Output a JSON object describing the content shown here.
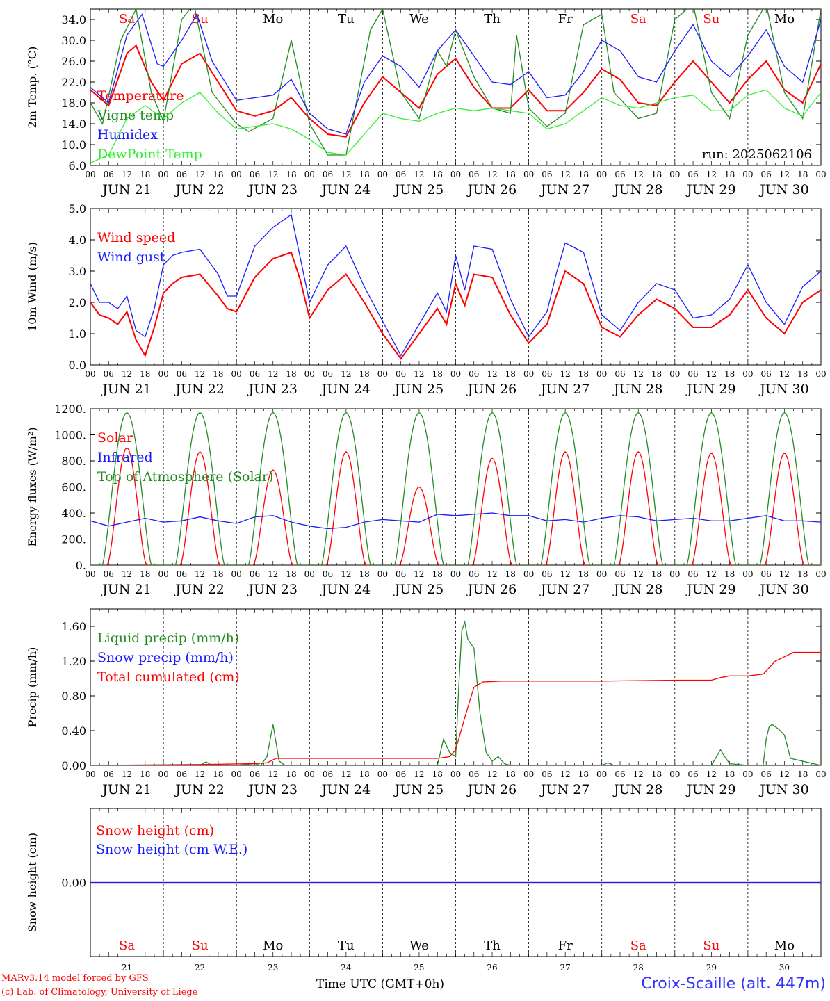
{
  "run_label": "run: 2025062106",
  "footer": {
    "model": "MARv3.14 model forced by GFS",
    "copyright": "(c) Lab. of Climatology, University of Liege",
    "xlabel": "Time UTC (GMT+0h)",
    "station": "Croix-Scaille (alt. 447m)"
  },
  "colors": {
    "red": "#ff0000",
    "green": "#228b22",
    "blue": "#1a1aff",
    "lightgreen": "#33ee33"
  },
  "days": [
    {
      "date": "JUN 21",
      "dow": "Sa",
      "num": "21",
      "weekend": true
    },
    {
      "date": "JUN 22",
      "dow": "Su",
      "num": "22",
      "weekend": true
    },
    {
      "date": "JUN 23",
      "dow": "Mo",
      "num": "23",
      "weekend": false
    },
    {
      "date": "JUN 24",
      "dow": "Tu",
      "num": "24",
      "weekend": false
    },
    {
      "date": "JUN 25",
      "dow": "We",
      "num": "25",
      "weekend": false
    },
    {
      "date": "JUN 26",
      "dow": "Th",
      "num": "26",
      "weekend": false
    },
    {
      "date": "JUN 27",
      "dow": "Fr",
      "num": "27",
      "weekend": false
    },
    {
      "date": "JUN 28",
      "dow": "Sa",
      "num": "28",
      "weekend": true
    },
    {
      "date": "JUN 29",
      "dow": "Su",
      "num": "29",
      "weekend": true
    },
    {
      "date": "JUN 30",
      "dow": "Mo",
      "num": "30",
      "weekend": false
    }
  ],
  "hour_ticks": [
    "00",
    "06",
    "12",
    "18"
  ],
  "chart_data": [
    {
      "type": "line",
      "ylabel": "2m Temp. (°C)",
      "ylim": [
        6,
        36
      ],
      "yticks": [
        6,
        10,
        14,
        18,
        22,
        26,
        30,
        34
      ],
      "ytick_labels": [
        "6.0",
        "10.0",
        "14.0",
        "18.0",
        "22.0",
        "26.0",
        "30.0",
        "34.0"
      ],
      "x_unit": "hours since JUN 21 00 UTC",
      "series": [
        {
          "name": "Temperature",
          "color": "#ff0000",
          "x": [
            0,
            6,
            12,
            15,
            20,
            24,
            30,
            36,
            42,
            48,
            54,
            60,
            66,
            72,
            78,
            84,
            90,
            96,
            102,
            108,
            114,
            120,
            126,
            132,
            138,
            144,
            150,
            156,
            162,
            168,
            174,
            180,
            186,
            192,
            198,
            204,
            210,
            216,
            222,
            228,
            234,
            240
          ],
          "values": [
            20.5,
            17.5,
            27.5,
            29.0,
            22.0,
            18.5,
            25.5,
            27.5,
            22.0,
            16.5,
            15.5,
            16.5,
            19.0,
            15.0,
            12.0,
            11.5,
            18.0,
            23.0,
            20.0,
            17.0,
            23.5,
            26.5,
            21.0,
            17.0,
            17.0,
            20.5,
            16.5,
            16.5,
            20.0,
            24.5,
            22.5,
            18.0,
            17.5,
            22.0,
            26.0,
            22.0,
            18.0,
            22.5,
            26.0,
            20.5,
            18.0,
            25.5
          ]
        },
        {
          "name": "Vigne temp",
          "color": "#228b22",
          "x": [
            0,
            4,
            10,
            15,
            20,
            24,
            30,
            34,
            40,
            48,
            52,
            60,
            66,
            72,
            78,
            84,
            92,
            96,
            102,
            108,
            114,
            117,
            120,
            126,
            132,
            138,
            140,
            144,
            150,
            156,
            162,
            168,
            172,
            180,
            186,
            192,
            198,
            204,
            210,
            216,
            222,
            228,
            234,
            240
          ],
          "values": [
            18.0,
            14.0,
            30.0,
            36.0,
            20.0,
            14.5,
            34.0,
            37.0,
            20.0,
            14.0,
            12.5,
            15.0,
            30.0,
            14.0,
            8.0,
            8.0,
            32.0,
            36.0,
            20.0,
            15.0,
            28.0,
            25.0,
            32.0,
            23.0,
            17.0,
            16.0,
            31.0,
            17.0,
            13.5,
            16.0,
            33.0,
            35.0,
            20.0,
            15.0,
            16.0,
            34.0,
            37.0,
            20.0,
            15.0,
            31.0,
            37.0,
            20.0,
            15.0,
            36.0
          ]
        },
        {
          "name": "Humidex",
          "color": "#1a1aff",
          "x": [
            0,
            6,
            12,
            17,
            22,
            24,
            30,
            35,
            40,
            48,
            54,
            60,
            66,
            72,
            78,
            84,
            90,
            96,
            102,
            108,
            114,
            120,
            126,
            132,
            138,
            144,
            150,
            156,
            162,
            168,
            174,
            180,
            186,
            192,
            198,
            204,
            210,
            216,
            222,
            228,
            234,
            240
          ],
          "values": [
            21.0,
            18.0,
            31.0,
            35.0,
            25.5,
            25.0,
            30.0,
            35.0,
            26.0,
            18.5,
            19.0,
            19.5,
            22.5,
            16.0,
            13.0,
            12.0,
            22.0,
            27.0,
            25.0,
            21.0,
            28.0,
            32.0,
            27.0,
            22.0,
            21.5,
            24.0,
            19.0,
            19.5,
            24.0,
            30.0,
            28.0,
            23.0,
            22.0,
            28.0,
            33.0,
            26.0,
            23.0,
            27.0,
            32.0,
            25.0,
            22.0,
            34.0
          ]
        },
        {
          "name": "DewPoint Temp",
          "color": "#33ee33",
          "x": [
            0,
            6,
            12,
            18,
            24,
            30,
            36,
            42,
            48,
            54,
            60,
            66,
            72,
            78,
            84,
            90,
            96,
            102,
            108,
            114,
            120,
            126,
            132,
            138,
            144,
            150,
            156,
            162,
            168,
            174,
            180,
            186,
            192,
            198,
            204,
            210,
            216,
            222,
            228,
            234,
            240
          ],
          "values": [
            6.5,
            8.0,
            15.0,
            17.5,
            15.0,
            18.0,
            20.0,
            16.0,
            13.0,
            13.5,
            14.0,
            13.0,
            11.0,
            8.5,
            8.0,
            12.0,
            16.0,
            15.0,
            14.5,
            16.0,
            17.0,
            16.5,
            17.0,
            16.5,
            16.0,
            13.0,
            14.0,
            16.5,
            19.0,
            17.5,
            17.0,
            18.0,
            19.0,
            19.5,
            16.5,
            16.5,
            19.5,
            20.5,
            17.0,
            15.5,
            20.0
          ]
        }
      ]
    },
    {
      "type": "line",
      "ylabel": "10m Wind (m/s)",
      "ylim": [
        0,
        5
      ],
      "yticks": [
        0,
        1,
        2,
        3,
        4,
        5
      ],
      "ytick_labels": [
        "0.0",
        "1.0",
        "2.0",
        "3.0",
        "4.0",
        "5.0"
      ],
      "x_unit": "hours since JUN 21 00 UTC",
      "series": [
        {
          "name": "Wind speed",
          "color": "#ff0000",
          "x": [
            0,
            3,
            6,
            9,
            12,
            15,
            18,
            21,
            24,
            27,
            30,
            36,
            42,
            45,
            48,
            54,
            60,
            66,
            69,
            72,
            78,
            84,
            90,
            96,
            102,
            108,
            114,
            117,
            120,
            123,
            126,
            132,
            138,
            144,
            150,
            153,
            156,
            162,
            168,
            174,
            180,
            186,
            192,
            198,
            204,
            210,
            216,
            222,
            228,
            234,
            240
          ],
          "values": [
            2.0,
            1.6,
            1.5,
            1.3,
            1.7,
            0.8,
            0.3,
            1.2,
            2.3,
            2.6,
            2.8,
            2.9,
            2.2,
            1.8,
            1.7,
            2.8,
            3.4,
            3.6,
            2.7,
            1.5,
            2.4,
            2.9,
            2.0,
            1.0,
            0.2,
            1.0,
            1.8,
            1.3,
            2.6,
            1.9,
            2.9,
            2.8,
            1.6,
            0.7,
            1.3,
            2.2,
            3.0,
            2.6,
            1.2,
            0.9,
            1.6,
            2.1,
            1.8,
            1.2,
            1.2,
            1.6,
            2.4,
            1.5,
            1.0,
            2.0,
            2.4
          ]
        },
        {
          "name": "Wind gust",
          "color": "#1a1aff",
          "x": [
            0,
            3,
            6,
            9,
            12,
            15,
            18,
            21,
            24,
            27,
            30,
            36,
            42,
            45,
            48,
            54,
            60,
            66,
            69,
            72,
            78,
            84,
            90,
            96,
            102,
            108,
            114,
            117,
            120,
            123,
            126,
            132,
            138,
            144,
            150,
            153,
            156,
            162,
            168,
            174,
            180,
            186,
            192,
            198,
            204,
            210,
            216,
            222,
            228,
            234,
            240
          ],
          "values": [
            2.6,
            2.0,
            2.0,
            1.8,
            2.2,
            1.1,
            0.9,
            1.8,
            3.2,
            3.5,
            3.6,
            3.7,
            2.9,
            2.2,
            2.2,
            3.8,
            4.4,
            4.8,
            3.4,
            2.0,
            3.2,
            3.8,
            2.5,
            1.4,
            0.3,
            1.3,
            2.3,
            1.7,
            3.5,
            2.4,
            3.8,
            3.7,
            2.1,
            0.9,
            1.7,
            2.9,
            3.9,
            3.6,
            1.6,
            1.1,
            2.0,
            2.6,
            2.4,
            1.5,
            1.6,
            2.1,
            3.2,
            2.0,
            1.3,
            2.5,
            3.0
          ]
        }
      ]
    },
    {
      "type": "line",
      "ylabel": "Energy fluxes (W/m²)",
      "ylim": [
        0,
        1200
      ],
      "yticks": [
        0,
        200,
        400,
        600,
        800,
        1000,
        1200
      ],
      "ytick_labels": [
        "0.",
        "200.",
        "400.",
        "600.",
        "800.",
        "1000.",
        "1200."
      ],
      "x_unit": "hours since JUN 21 00 UTC",
      "daily_peaks": {
        "top_of_atmosphere": [
          1170,
          1170,
          1170,
          1170,
          1170,
          1170,
          1170,
          1170,
          1170,
          1170
        ],
        "solar": [
          900,
          870,
          730,
          870,
          600,
          820,
          870,
          870,
          860,
          860
        ]
      },
      "series": [
        {
          "name": "Solar",
          "color": "#ff0000"
        },
        {
          "name": "Infrared",
          "color": "#1a1aff",
          "x": [
            0,
            6,
            12,
            18,
            24,
            30,
            36,
            42,
            48,
            54,
            60,
            66,
            72,
            78,
            84,
            90,
            96,
            102,
            108,
            114,
            120,
            126,
            132,
            138,
            144,
            150,
            156,
            162,
            168,
            174,
            180,
            186,
            192,
            198,
            204,
            210,
            216,
            222,
            228,
            234,
            240
          ],
          "values": [
            340,
            300,
            330,
            360,
            330,
            340,
            370,
            340,
            320,
            370,
            380,
            330,
            300,
            280,
            290,
            330,
            350,
            340,
            330,
            390,
            380,
            390,
            400,
            380,
            380,
            340,
            350,
            330,
            360,
            380,
            370,
            340,
            350,
            360,
            340,
            340,
            360,
            380,
            340,
            340,
            330
          ]
        },
        {
          "name": "Top of Atmosphere (Solar)",
          "color": "#228b22"
        }
      ]
    },
    {
      "type": "line",
      "ylabel": "Precip (mm/h)",
      "ylim": [
        0,
        1.8
      ],
      "yticks": [
        0,
        0.4,
        0.8,
        1.2,
        1.6
      ],
      "ytick_labels": [
        "0.00",
        "0.40",
        "0.80",
        "1.20",
        "1.60"
      ],
      "x_unit": "hours since JUN 21 00 UTC",
      "series": [
        {
          "name": "Liquid precip (mm/h)",
          "color": "#228b22",
          "x": [
            0,
            36,
            38,
            40,
            48,
            54,
            56,
            58,
            60,
            62,
            64,
            114,
            116,
            118,
            120,
            121,
            122,
            123,
            124,
            126,
            128,
            130,
            132,
            134,
            136,
            138,
            144,
            168,
            170,
            172,
            192,
            204,
            206,
            207,
            208,
            210,
            216,
            221,
            222,
            223,
            224,
            226,
            228,
            230,
            240
          ],
          "values": [
            0,
            0,
            0.04,
            0,
            0,
            0.02,
            0,
            0.1,
            0.47,
            0.05,
            0,
            0,
            0.3,
            0.15,
            0.1,
            0.9,
            1.55,
            1.65,
            1.45,
            1.35,
            0.6,
            0.15,
            0.05,
            0.1,
            0.02,
            0,
            0,
            0,
            0.03,
            0,
            0,
            0,
            0.12,
            0.18,
            0.12,
            0.02,
            0,
            0,
            0.3,
            0.45,
            0.47,
            0.42,
            0.35,
            0.08,
            0
          ]
        },
        {
          "name": "Snow precip (mm/h)",
          "color": "#1a1aff",
          "x": [
            0,
            240
          ],
          "values": [
            0,
            0
          ]
        },
        {
          "name": "Total cumulated (cm)",
          "color": "#ff0000",
          "x": [
            0,
            36,
            54,
            58,
            61,
            114,
            118,
            120,
            123,
            126,
            129,
            135,
            144,
            168,
            192,
            204,
            207,
            210,
            216,
            221,
            225,
            231,
            240
          ],
          "values": [
            0,
            0.01,
            0.02,
            0.03,
            0.08,
            0.08,
            0.1,
            0.18,
            0.55,
            0.9,
            0.96,
            0.97,
            0.97,
            0.97,
            0.98,
            0.98,
            1.01,
            1.03,
            1.03,
            1.05,
            1.2,
            1.3,
            1.3
          ]
        }
      ]
    },
    {
      "type": "line",
      "ylabel": "Snow height (cm)",
      "ylim": [
        -1,
        1
      ],
      "yticks": [
        0
      ],
      "ytick_labels": [
        "0.00"
      ],
      "x_unit": "hours since JUN 21 00 UTC",
      "series": [
        {
          "name": "Snow height (cm)",
          "color": "#ff0000",
          "x": [
            0,
            240
          ],
          "values": [
            0,
            0
          ]
        },
        {
          "name": "Snow height (cm W.E.)",
          "color": "#1a1aff",
          "x": [
            0,
            240
          ],
          "values": [
            0,
            0
          ]
        }
      ]
    }
  ]
}
